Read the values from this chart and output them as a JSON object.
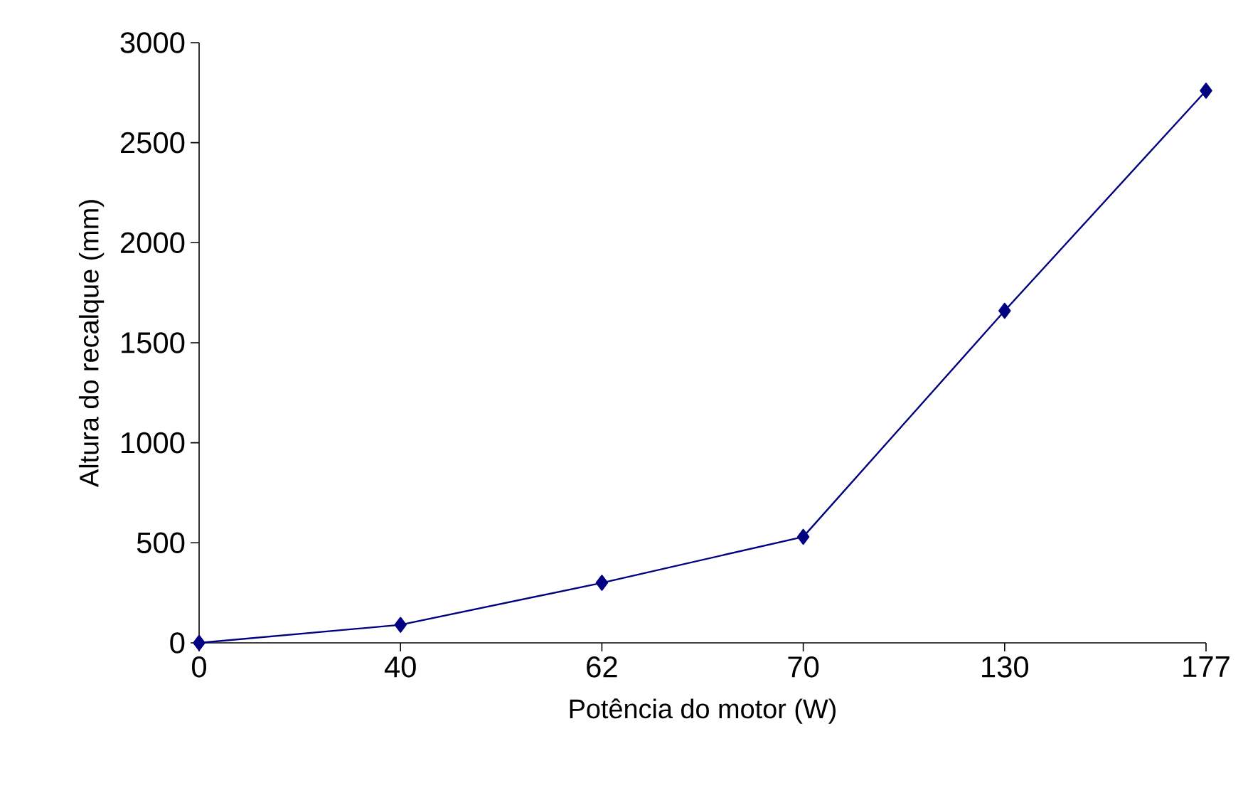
{
  "chart_data": {
    "type": "line",
    "xlabel": "Potência do motor (W)",
    "ylabel": "Altura do recalque (mm)",
    "categories": [
      "0",
      "40",
      "62",
      "70",
      "130",
      "177"
    ],
    "series": [
      {
        "color": "#000080",
        "values": [
          0,
          90,
          300,
          530,
          1660,
          2760
        ]
      }
    ],
    "ylim": [
      0,
      3000
    ],
    "yticks": [
      0,
      500,
      1000,
      1500,
      2000,
      2500,
      3000
    ],
    "grid": false,
    "marker": "diamond",
    "line_style": "solid"
  }
}
